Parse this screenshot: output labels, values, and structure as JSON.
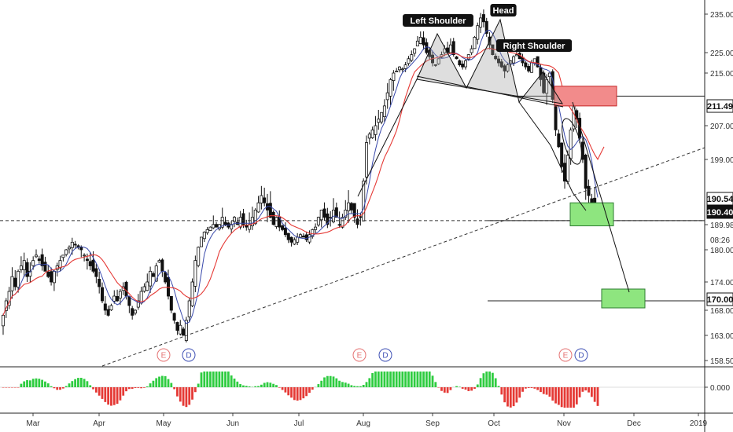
{
  "chart_data": {
    "type": "candlestick",
    "price_axis": {
      "ticks": [
        "235.00",
        "225.00",
        "215.00",
        "207.00",
        "199.00",
        "189.98",
        "180.00",
        "174.00",
        "168.00",
        "163.00",
        "158.50"
      ],
      "tick_values": [
        235,
        225,
        215,
        207,
        199,
        189.98,
        180,
        174,
        168,
        163,
        158.5
      ]
    },
    "indicator_axis": {
      "ticks": [
        "0.000"
      ],
      "tick_values": [
        0
      ]
    },
    "time_axis": {
      "labels": [
        "Mar",
        "Apr",
        "May",
        "Jun",
        "Jul",
        "Aug",
        "Sep",
        "Oct",
        "Nov",
        "Dec",
        "2019"
      ]
    },
    "price_badges": [
      {
        "text": "211.49",
        "value": 211.49,
        "style": "outline"
      },
      {
        "text": "190.54",
        "value": 190.54,
        "style": "outline"
      },
      {
        "text": "190.40",
        "value": 190.4,
        "style": "solid"
      },
      {
        "text": "08:26",
        "value": 183.2,
        "style": "plain"
      },
      {
        "text": "170.00",
        "value": 170.0,
        "style": "outline"
      }
    ],
    "pattern_labels": [
      "Left Shoulder",
      "Head",
      "Right Shoulder"
    ],
    "event_markers": [
      {
        "label": "E",
        "color": "#e57373",
        "month": "May"
      },
      {
        "label": "D",
        "color": "#3f51b5",
        "month": "May"
      },
      {
        "label": "E",
        "color": "#e57373",
        "month": "Aug"
      },
      {
        "label": "D",
        "color": "#3f51b5",
        "month": "Aug"
      },
      {
        "label": "E",
        "color": "#e57373",
        "month": "Nov"
      },
      {
        "label": "D",
        "color": "#3f51b5",
        "month": "Nov"
      }
    ],
    "series_closes": [
      167,
      170,
      172,
      175,
      173,
      176,
      177,
      178,
      175,
      176,
      178,
      179,
      178,
      177,
      176,
      175,
      174,
      176,
      177,
      178,
      179,
      180,
      181,
      183,
      182,
      181,
      180,
      179,
      178,
      177,
      176,
      175,
      173,
      170,
      168,
      167,
      169,
      171,
      170,
      172,
      173,
      171,
      169,
      167,
      168,
      170,
      172,
      173,
      174,
      176,
      175,
      177,
      178,
      176,
      174,
      171,
      168,
      166,
      164,
      165,
      163,
      166,
      170,
      174,
      178,
      181,
      185,
      187,
      188,
      189,
      190,
      189,
      190,
      191,
      190,
      189,
      190,
      191,
      190,
      191,
      190,
      189,
      190,
      191,
      192,
      193,
      194,
      193,
      192,
      191,
      190,
      191,
      189,
      188,
      186,
      184,
      183,
      184,
      185,
      186,
      185,
      184,
      186,
      188,
      189,
      191,
      192,
      191,
      190,
      191,
      192,
      191,
      190,
      191,
      192,
      193,
      192,
      191,
      190,
      191,
      196,
      203,
      205,
      206,
      207,
      208,
      209,
      210,
      212,
      214,
      215,
      216,
      218,
      217,
      219,
      222,
      224,
      226,
      228,
      229,
      227,
      225,
      223,
      220,
      219,
      222,
      224,
      226,
      225,
      227,
      224,
      222,
      219,
      218,
      221,
      224,
      226,
      229,
      232,
      234,
      233,
      230,
      227,
      224,
      222,
      220,
      218,
      216,
      219,
      221,
      223,
      224,
      222,
      220,
      218,
      216,
      220,
      222,
      218,
      214,
      212,
      214,
      215,
      211,
      206,
      202,
      198,
      196,
      200,
      206,
      210,
      208,
      204,
      199,
      195,
      194,
      193,
      191,
      190.4
    ],
    "annotations": {
      "horizontal_levels": [
        211.49,
        190.54,
        170.0
      ],
      "zones": [
        {
          "color": "red",
          "from": 210,
          "to": 213
        },
        {
          "color": "green",
          "from": 189.5,
          "to": 193
        },
        {
          "color": "green",
          "from": 168.5,
          "to": 172.5
        }
      ]
    }
  }
}
